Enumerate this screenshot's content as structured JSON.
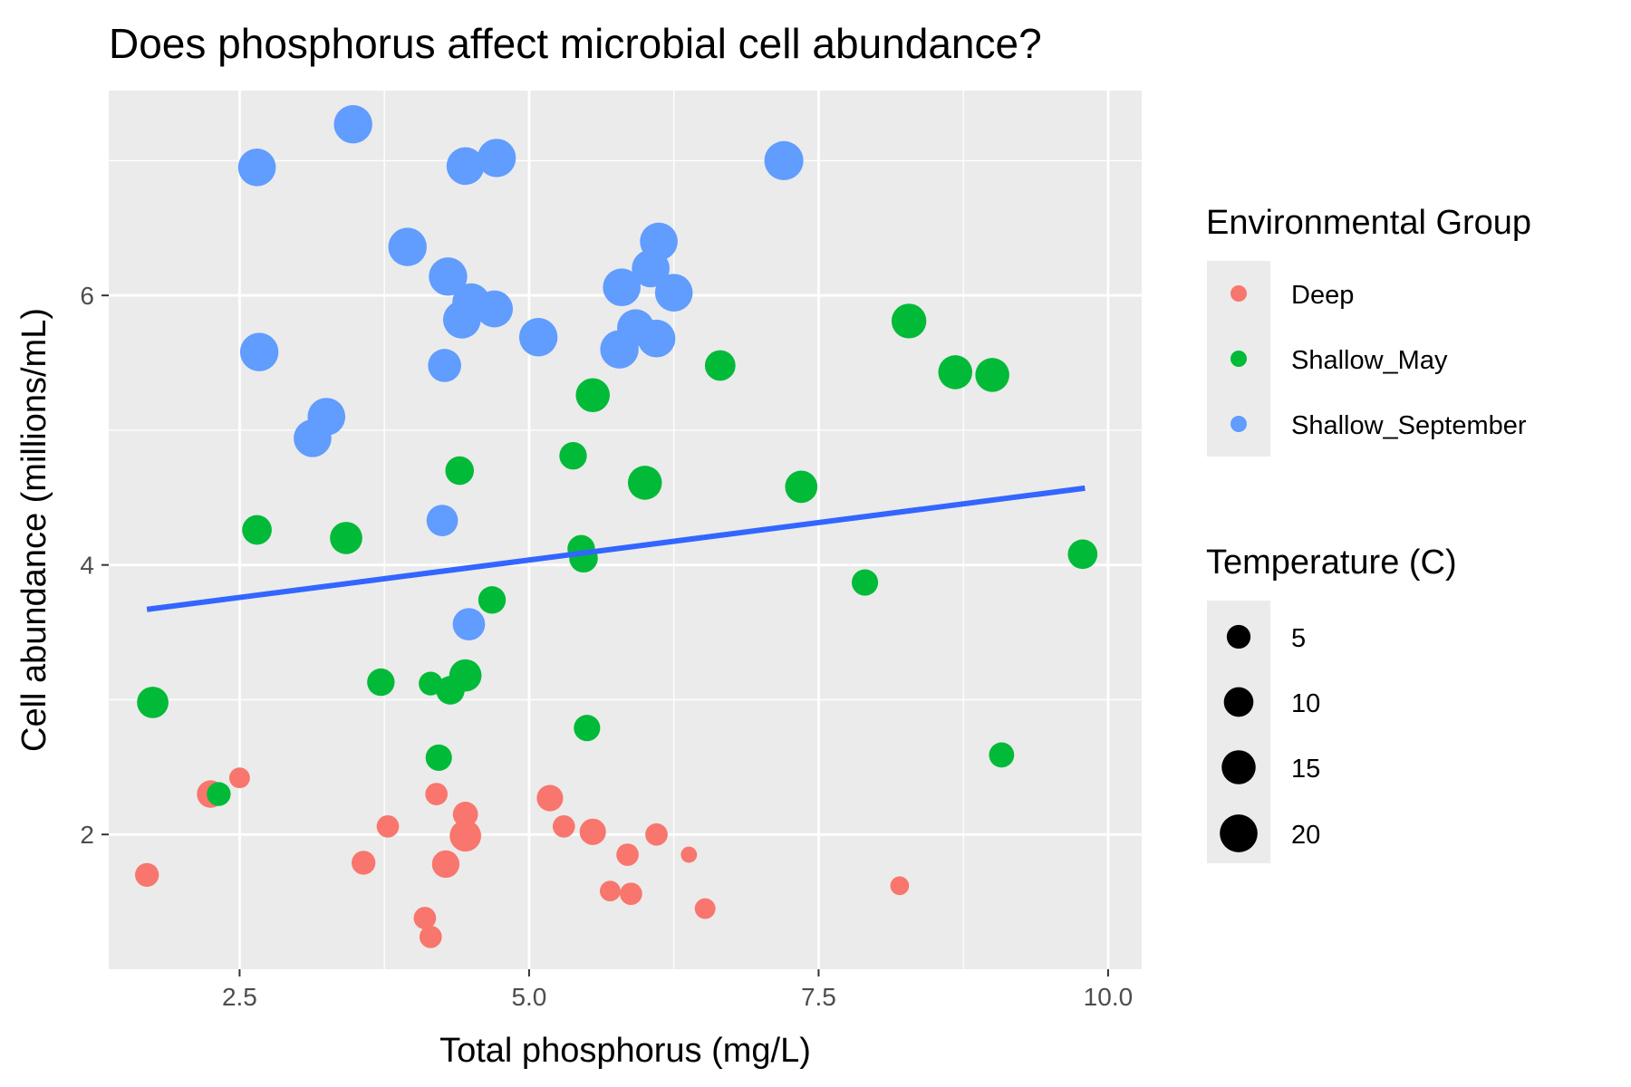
{
  "chart_data": {
    "type": "scatter",
    "title": "Does phosphorus affect microbial cell abundance?",
    "xlabel": "Total phosphorus (mg/L)",
    "ylabel": "Cell abundance (millions/mL)",
    "xlim": [
      1.37,
      10.29
    ],
    "ylim": [
      1.0,
      7.52
    ],
    "x_ticks": [
      2.5,
      5.0,
      7.5,
      10.0
    ],
    "x_tick_labels": [
      "2.5",
      "5.0",
      "7.5",
      "10.0"
    ],
    "y_ticks": [
      2,
      4,
      6
    ],
    "y_tick_labels": [
      "2",
      "4",
      "6"
    ],
    "grid": true,
    "legend_position": "right",
    "colors": {
      "Deep": "#F8766D",
      "Shallow_May": "#00BA38",
      "Shallow_September": "#619CFF",
      "trend": "#3366FF",
      "panel": "#EBEBEB",
      "grid": "#FFFFFF"
    },
    "color_legend": {
      "title": "Environmental Group",
      "entries": [
        "Deep",
        "Shallow_May",
        "Shallow_September"
      ]
    },
    "size_legend": {
      "title": "Temperature (C)",
      "entries": [
        5,
        10,
        15,
        20
      ]
    },
    "trend_line": {
      "x": [
        1.7,
        9.8
      ],
      "y": [
        3.67,
        4.57
      ]
    },
    "series": [
      {
        "name": "Deep",
        "points": [
          {
            "x": 1.7,
            "y": 1.7,
            "temp": 5
          },
          {
            "x": 2.25,
            "y": 2.3,
            "temp": 8
          },
          {
            "x": 2.5,
            "y": 2.42,
            "temp": 3
          },
          {
            "x": 3.57,
            "y": 1.79,
            "temp": 5
          },
          {
            "x": 3.78,
            "y": 2.06,
            "temp": 4
          },
          {
            "x": 4.1,
            "y": 1.38,
            "temp": 4
          },
          {
            "x": 4.15,
            "y": 1.24,
            "temp": 4
          },
          {
            "x": 4.2,
            "y": 2.3,
            "temp": 4
          },
          {
            "x": 4.28,
            "y": 1.78,
            "temp": 8
          },
          {
            "x": 4.45,
            "y": 2.15,
            "temp": 6
          },
          {
            "x": 4.45,
            "y": 1.99,
            "temp": 12
          },
          {
            "x": 5.18,
            "y": 2.27,
            "temp": 7
          },
          {
            "x": 5.3,
            "y": 2.06,
            "temp": 4
          },
          {
            "x": 5.55,
            "y": 2.02,
            "temp": 7
          },
          {
            "x": 5.7,
            "y": 1.58,
            "temp": 3
          },
          {
            "x": 5.85,
            "y": 1.85,
            "temp": 4
          },
          {
            "x": 5.88,
            "y": 1.56,
            "temp": 4
          },
          {
            "x": 6.1,
            "y": 2.0,
            "temp": 4
          },
          {
            "x": 6.38,
            "y": 1.85,
            "temp": 1
          },
          {
            "x": 6.52,
            "y": 1.45,
            "temp": 3
          },
          {
            "x": 8.2,
            "y": 1.62,
            "temp": 2
          }
        ]
      },
      {
        "name": "Shallow_May",
        "points": [
          {
            "x": 1.75,
            "y": 2.98,
            "temp": 12
          },
          {
            "x": 2.32,
            "y": 2.3,
            "temp": 5
          },
          {
            "x": 2.65,
            "y": 4.26,
            "temp": 10
          },
          {
            "x": 3.42,
            "y": 4.2,
            "temp": 13
          },
          {
            "x": 3.72,
            "y": 3.13,
            "temp": 8
          },
          {
            "x": 4.15,
            "y": 3.12,
            "temp": 5
          },
          {
            "x": 4.22,
            "y": 2.57,
            "temp": 7
          },
          {
            "x": 4.32,
            "y": 3.07,
            "temp": 9
          },
          {
            "x": 4.4,
            "y": 4.7,
            "temp": 9
          },
          {
            "x": 4.45,
            "y": 3.18,
            "temp": 13
          },
          {
            "x": 4.68,
            "y": 3.74,
            "temp": 8
          },
          {
            "x": 5.38,
            "y": 4.81,
            "temp": 8
          },
          {
            "x": 5.45,
            "y": 4.12,
            "temp": 8
          },
          {
            "x": 5.47,
            "y": 4.05,
            "temp": 9
          },
          {
            "x": 5.5,
            "y": 2.79,
            "temp": 7
          },
          {
            "x": 5.55,
            "y": 5.26,
            "temp": 15
          },
          {
            "x": 6.0,
            "y": 4.61,
            "temp": 15
          },
          {
            "x": 6.65,
            "y": 5.48,
            "temp": 11
          },
          {
            "x": 7.35,
            "y": 4.58,
            "temp": 13
          },
          {
            "x": 7.9,
            "y": 3.87,
            "temp": 7
          },
          {
            "x": 8.28,
            "y": 5.81,
            "temp": 16
          },
          {
            "x": 8.68,
            "y": 5.43,
            "temp": 15
          },
          {
            "x": 9.0,
            "y": 5.41,
            "temp": 15
          },
          {
            "x": 9.08,
            "y": 2.59,
            "temp": 6
          },
          {
            "x": 9.78,
            "y": 4.08,
            "temp": 10
          }
        ]
      },
      {
        "name": "Shallow_September",
        "points": [
          {
            "x": 2.65,
            "y": 6.95,
            "temp": 20
          },
          {
            "x": 2.67,
            "y": 5.58,
            "temp": 21
          },
          {
            "x": 3.13,
            "y": 4.94,
            "temp": 20
          },
          {
            "x": 3.25,
            "y": 5.1,
            "temp": 20
          },
          {
            "x": 3.48,
            "y": 7.27,
            "temp": 21
          },
          {
            "x": 3.95,
            "y": 6.36,
            "temp": 21
          },
          {
            "x": 4.25,
            "y": 4.33,
            "temp": 12
          },
          {
            "x": 4.27,
            "y": 5.48,
            "temp": 14
          },
          {
            "x": 4.3,
            "y": 6.14,
            "temp": 21
          },
          {
            "x": 4.42,
            "y": 5.82,
            "temp": 20
          },
          {
            "x": 4.45,
            "y": 6.96,
            "temp": 20
          },
          {
            "x": 4.48,
            "y": 3.56,
            "temp": 13
          },
          {
            "x": 4.5,
            "y": 5.95,
            "temp": 20
          },
          {
            "x": 4.7,
            "y": 5.9,
            "temp": 19
          },
          {
            "x": 4.72,
            "y": 7.02,
            "temp": 21
          },
          {
            "x": 5.08,
            "y": 5.69,
            "temp": 21
          },
          {
            "x": 5.78,
            "y": 5.6,
            "temp": 21
          },
          {
            "x": 5.8,
            "y": 6.06,
            "temp": 20
          },
          {
            "x": 5.92,
            "y": 5.76,
            "temp": 19
          },
          {
            "x": 6.05,
            "y": 6.2,
            "temp": 20
          },
          {
            "x": 6.1,
            "y": 5.68,
            "temp": 20
          },
          {
            "x": 6.12,
            "y": 6.4,
            "temp": 20
          },
          {
            "x": 6.25,
            "y": 6.02,
            "temp": 20
          },
          {
            "x": 7.2,
            "y": 7.0,
            "temp": 22
          }
        ]
      }
    ]
  }
}
